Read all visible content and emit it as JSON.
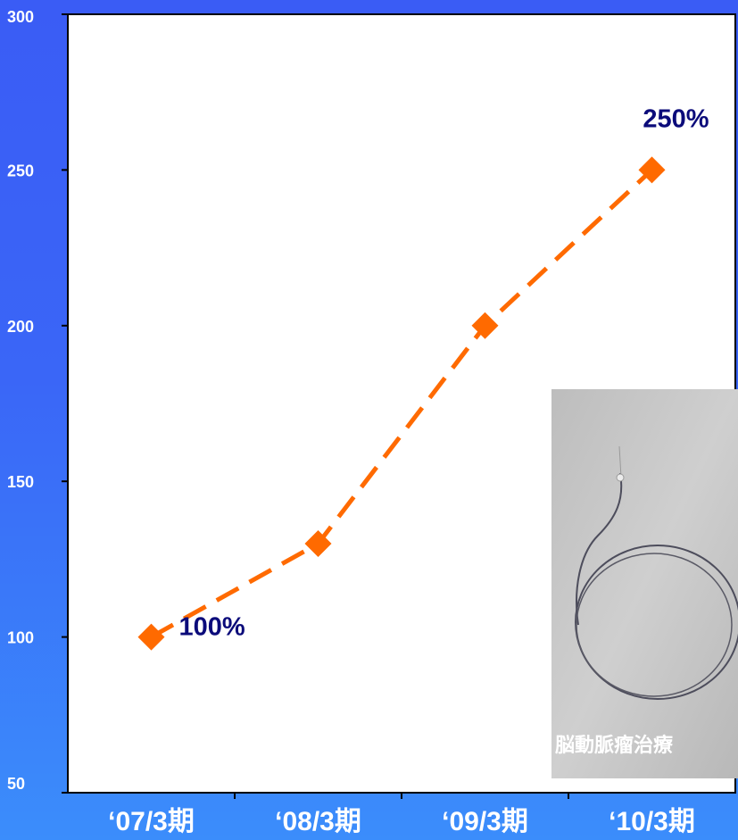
{
  "chart_data": {
    "type": "line",
    "categories": [
      "‘07/3期",
      "‘08/3期",
      "‘09/3期",
      "‘10/3期"
    ],
    "series": [
      {
        "values": [
          100,
          130,
          200,
          250
        ]
      }
    ],
    "ylim": [
      50,
      300
    ],
    "yticks": [
      50,
      100,
      150,
      200,
      250,
      300
    ],
    "data_labels": [
      {
        "index": 0,
        "text": "100%"
      },
      {
        "index": 3,
        "text": "250%"
      }
    ],
    "line_style": "dashed",
    "marker": "diamond",
    "grid": false,
    "colors": {
      "line": "#ff6a00",
      "label": "#0b0b7a",
      "plot_bg": "#ffffff"
    }
  },
  "inset": {
    "caption": "脳動脈瘤治療"
  }
}
